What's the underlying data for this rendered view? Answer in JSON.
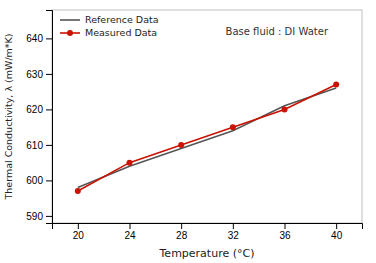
{
  "chart_data": {
    "type": "line",
    "xlabel": "Temperature (°C)",
    "ylabel": "Thermal Conductivity, λ (mW/m*K)",
    "annotation": "Base fluid : DI Water",
    "x": [
      20,
      24,
      28,
      32,
      36,
      40
    ],
    "series": [
      {
        "name": "Reference Data",
        "color": "#555555",
        "values": [
          598,
          604,
          609,
          614,
          621,
          626
        ]
      },
      {
        "name": "Measured Data",
        "color": "#cc1100",
        "marker": "circle",
        "values": [
          597,
          605,
          610,
          615,
          620,
          627
        ]
      }
    ],
    "xlim": [
      18,
      42
    ],
    "ylim": [
      588,
      648
    ],
    "xticks": [
      20,
      24,
      28,
      32,
      36,
      40
    ],
    "yticks": [
      590,
      600,
      610,
      620,
      630,
      640
    ],
    "legend": "upper left"
  }
}
